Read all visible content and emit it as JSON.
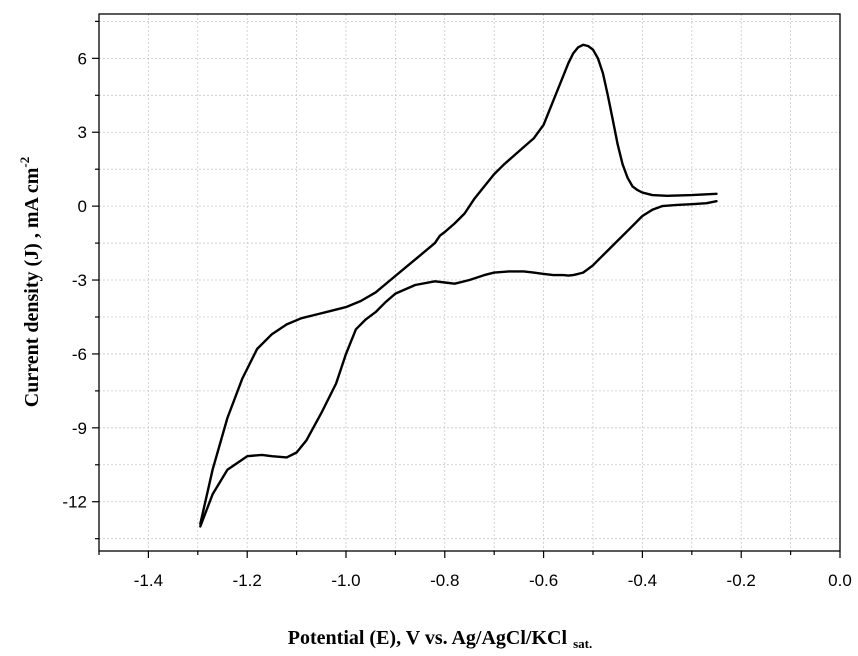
{
  "chart_data": {
    "type": "line",
    "title": "",
    "xlabel_main": "Potential (E), V vs. Ag/AgCl/KCl",
    "xlabel_sub": "sat.",
    "ylabel_main": "Current density (J) , mA cm",
    "ylabel_sup": "-2",
    "xlim": [
      -1.5,
      0.0
    ],
    "ylim": [
      -14.0,
      7.8
    ],
    "xticks": [
      -1.4,
      -1.2,
      -1.0,
      -0.8,
      -0.6,
      -0.4,
      -0.2,
      0.0
    ],
    "xtick_labels": [
      "-1.4",
      "-1.2",
      "-1.0",
      "-0.8",
      "-0.6",
      "-0.4",
      "-0.2",
      "0.0"
    ],
    "yticks": [
      -12,
      -9,
      -6,
      -3,
      0,
      3,
      6
    ],
    "ytick_labels": [
      "-12",
      "-9",
      "-6",
      "-3",
      "0",
      "3",
      "6"
    ],
    "grid": true,
    "line_color": "#000000",
    "grid_color": "#c8c8c8",
    "series": [
      {
        "x": [
          -1.295,
          -1.27,
          -1.24,
          -1.2,
          -1.17,
          -1.15,
          -1.12,
          -1.1,
          -1.08,
          -1.05,
          -1.02,
          -1.0,
          -0.98,
          -0.96,
          -0.94,
          -0.92,
          -0.9,
          -0.86,
          -0.82,
          -0.8,
          -0.78,
          -0.75,
          -0.72,
          -0.7,
          -0.67,
          -0.64,
          -0.62,
          -0.6,
          -0.58,
          -0.56,
          -0.55,
          -0.54,
          -0.53,
          -0.52,
          -0.51,
          -0.5,
          -0.49,
          -0.47,
          -0.45,
          -0.43,
          -0.41,
          -0.4,
          -0.38,
          -0.36,
          -0.33,
          -0.3,
          -0.27,
          -0.25
        ],
        "y": [
          -13.0,
          -11.7,
          -10.7,
          -10.15,
          -10.1,
          -10.15,
          -10.2,
          -10.0,
          -9.5,
          -8.4,
          -7.2,
          -6.0,
          -5.0,
          -4.6,
          -4.3,
          -3.9,
          -3.55,
          -3.2,
          -3.05,
          -3.1,
          -3.15,
          -3.0,
          -2.8,
          -2.7,
          -2.65,
          -2.65,
          -2.7,
          -2.75,
          -2.8,
          -2.8,
          -2.82,
          -2.8,
          -2.75,
          -2.7,
          -2.55,
          -2.4,
          -2.2,
          -1.8,
          -1.4,
          -1.0,
          -0.6,
          -0.4,
          -0.15,
          0.0,
          0.05,
          0.08,
          0.12,
          0.2
        ]
      },
      {
        "x": [
          -1.295,
          -1.27,
          -1.24,
          -1.21,
          -1.18,
          -1.15,
          -1.12,
          -1.09,
          -1.06,
          -1.03,
          -1.0,
          -0.97,
          -0.94,
          -0.91,
          -0.88,
          -0.85,
          -0.82,
          -0.81,
          -0.8,
          -0.78,
          -0.76,
          -0.74,
          -0.72,
          -0.7,
          -0.68,
          -0.66,
          -0.64,
          -0.62,
          -0.6,
          -0.58,
          -0.56,
          -0.55,
          -0.54,
          -0.53,
          -0.52,
          -0.51,
          -0.5,
          -0.49,
          -0.48,
          -0.47,
          -0.46,
          -0.45,
          -0.44,
          -0.43,
          -0.42,
          -0.41,
          -0.4,
          -0.38,
          -0.35,
          -0.3,
          -0.25
        ],
        "y": [
          -12.9,
          -10.7,
          -8.6,
          -7.0,
          -5.8,
          -5.2,
          -4.8,
          -4.55,
          -4.4,
          -4.25,
          -4.1,
          -3.85,
          -3.5,
          -3.0,
          -2.5,
          -2.0,
          -1.5,
          -1.2,
          -1.05,
          -0.7,
          -0.3,
          0.3,
          0.8,
          1.3,
          1.7,
          2.05,
          2.4,
          2.75,
          3.3,
          4.3,
          5.3,
          5.8,
          6.2,
          6.45,
          6.55,
          6.5,
          6.35,
          6.0,
          5.4,
          4.5,
          3.5,
          2.5,
          1.7,
          1.15,
          0.8,
          0.65,
          0.55,
          0.45,
          0.42,
          0.45,
          0.5
        ]
      }
    ]
  }
}
